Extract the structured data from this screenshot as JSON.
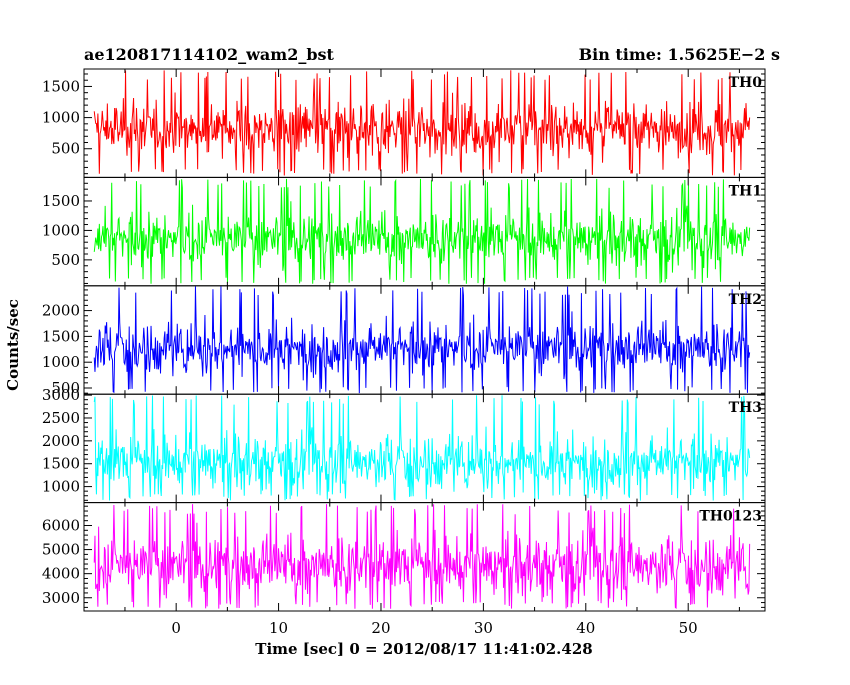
{
  "chart_data": {
    "type": "line",
    "title_left": "ae120817114102_wam2_bst",
    "title_right": "Bin time: 1.5625E−2 s",
    "xlabel": "Time [sec] 0 = 2012/08/17 11:41:02.428",
    "ylabel": "Counts/sec",
    "xlim": [
      -9,
      57.5
    ],
    "data_x_range": [
      -8.0,
      56.0
    ],
    "xticks": [
      "0",
      "10",
      "20",
      "30",
      "40",
      "50"
    ],
    "xtick_values": [
      0,
      10,
      20,
      30,
      40,
      50
    ],
    "panels": [
      {
        "name": "TH0",
        "color": "#ff0000",
        "ylim": [
          40,
          1780
        ],
        "yticks": [
          500,
          1000,
          1500
        ],
        "ytick_labels": [
          "500",
          "1000",
          "1500"
        ],
        "center": 820,
        "spread": 260,
        "min": 70,
        "max": 1760
      },
      {
        "name": "TH1",
        "color": "#00ff00",
        "ylim": [
          60,
          1900
        ],
        "yticks": [
          500,
          1000,
          1500
        ],
        "ytick_labels": [
          "500",
          "1000",
          "1500"
        ],
        "center": 860,
        "spread": 270,
        "min": 90,
        "max": 1880
      },
      {
        "name": "TH2",
        "color": "#0000ff",
        "ylim": [
          380,
          2480
        ],
        "yticks": [
          500,
          1000,
          1500,
          2000
        ],
        "ytick_labels": [
          "500",
          "1000",
          "1500",
          "2000"
        ],
        "center": 1280,
        "spread": 300,
        "min": 400,
        "max": 2470
      },
      {
        "name": "TH3",
        "color": "#00ffff",
        "ylim": [
          650,
          3020
        ],
        "yticks": [
          1000,
          1500,
          2000,
          2500,
          3000
        ],
        "ytick_labels": [
          "1000",
          "1500",
          "2000",
          "2500",
          "3000"
        ],
        "center": 1550,
        "spread": 360,
        "min": 690,
        "max": 3000
      },
      {
        "name": "TH0123",
        "color": "#ff00ff",
        "ylim": [
          2450,
          6950
        ],
        "yticks": [
          3000,
          4000,
          5000,
          6000
        ],
        "ytick_labels": [
          "3000",
          "4000",
          "5000",
          "6000"
        ],
        "center": 4350,
        "spread": 750,
        "min": 2530,
        "max": 6900
      }
    ]
  }
}
